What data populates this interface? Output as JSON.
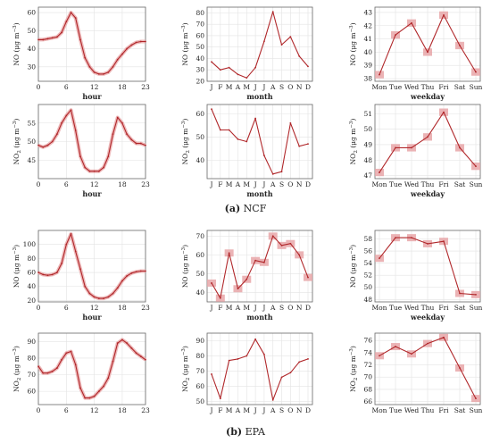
{
  "colors": {
    "line": "#b0272a",
    "band": "#e8a6a8",
    "grid": "#e3e3e3",
    "axis": "#666666"
  },
  "captions": {
    "a": {
      "letter": "(a)",
      "text": "NCF"
    },
    "b": {
      "letter": "(b)",
      "text": "EPA"
    }
  },
  "chart_data": [
    {
      "id": "ncf_no_hour",
      "type": "line",
      "x": [
        0,
        1,
        2,
        3,
        4,
        5,
        6,
        7,
        8,
        9,
        10,
        11,
        12,
        13,
        14,
        15,
        16,
        17,
        18,
        19,
        20,
        21,
        22,
        23
      ],
      "values": [
        45,
        45,
        45.5,
        46,
        46.5,
        49,
        55,
        60,
        57,
        45,
        35,
        30,
        27,
        26,
        26,
        27,
        30,
        34,
        37,
        40,
        42,
        43.5,
        44,
        44
      ],
      "band": "line",
      "xticks": [
        0,
        6,
        12,
        18,
        23
      ],
      "xticklabels": [
        "0",
        "6",
        "12",
        "18",
        "23"
      ],
      "xlim": [
        0,
        23
      ],
      "ylim": [
        22,
        63
      ],
      "yticks": [
        30,
        40,
        50,
        60
      ],
      "xlabel": "hour",
      "ylabel_main": "NO",
      "ylabel_sub": "",
      "ylabel_unit": "(μg m",
      "ylabel_sup": "−3",
      "grid": true
    },
    {
      "id": "ncf_no_month",
      "type": "line",
      "categories": [
        "J",
        "F",
        "M",
        "A",
        "M",
        "J",
        "J",
        "A",
        "S",
        "O",
        "N",
        "D"
      ],
      "values": [
        37,
        30,
        32,
        26,
        23,
        32,
        55,
        81,
        52,
        59,
        42,
        33
      ],
      "band": "none",
      "ylim": [
        20,
        85
      ],
      "yticks": [
        20,
        30,
        40,
        50,
        60,
        70,
        80
      ],
      "xlabel": "month",
      "ylabel_main": "NO",
      "ylabel_sub": "",
      "ylabel_unit": "(μg m",
      "ylabel_sup": "−3",
      "grid": true
    },
    {
      "id": "ncf_no_weekday",
      "type": "line",
      "categories": [
        "Mon",
        "Tue",
        "Wed",
        "Thu",
        "Fri",
        "Sat",
        "Sun"
      ],
      "values": [
        38.3,
        41.3,
        42.2,
        40,
        42.8,
        40.5,
        38.5
      ],
      "band": "box",
      "ylim": [
        37.8,
        43.4
      ],
      "yticks": [
        38,
        39,
        40,
        41,
        42,
        43
      ],
      "xlabel": "weekday",
      "ylabel_main": "NO",
      "ylabel_sub": "",
      "ylabel_unit": "(μg m",
      "ylabel_sup": "−3",
      "grid": true
    },
    {
      "id": "ncf_no2_hour",
      "type": "line",
      "x": [
        0,
        1,
        2,
        3,
        4,
        5,
        6,
        7,
        8,
        9,
        10,
        11,
        12,
        13,
        14,
        15,
        16,
        17,
        18,
        19,
        20,
        21,
        22,
        23
      ],
      "values": [
        49,
        48.5,
        49,
        50,
        52,
        55,
        57,
        58.5,
        53,
        46,
        43,
        42,
        42,
        42,
        43,
        46,
        52,
        56.5,
        55,
        52,
        50.5,
        49.5,
        49.5,
        49
      ],
      "band": "line",
      "xticks": [
        0,
        6,
        12,
        18,
        23
      ],
      "xticklabels": [
        "0",
        "6",
        "12",
        "18",
        "23"
      ],
      "xlim": [
        0,
        23
      ],
      "ylim": [
        40,
        60
      ],
      "yticks": [
        45,
        50,
        55
      ],
      "xlabel": "hour",
      "ylabel_main": "NO",
      "ylabel_sub": "2",
      "ylabel_unit": "(μg m",
      "ylabel_sup": "−3",
      "grid": true
    },
    {
      "id": "ncf_no2_month",
      "type": "line",
      "categories": [
        "J",
        "F",
        "M",
        "A",
        "M",
        "J",
        "J",
        "A",
        "S",
        "O",
        "N",
        "D"
      ],
      "values": [
        62,
        53,
        53,
        49,
        48,
        58,
        42,
        34,
        35,
        56,
        46,
        47
      ],
      "band": "none",
      "ylim": [
        32,
        64
      ],
      "yticks": [
        40,
        50,
        60
      ],
      "xlabel": "month",
      "ylabel_main": "NO",
      "ylabel_sub": "2",
      "ylabel_unit": "(μg m",
      "ylabel_sup": "−3",
      "grid": true
    },
    {
      "id": "ncf_no2_weekday",
      "type": "line",
      "categories": [
        "Mon",
        "Tue",
        "Wed",
        "Thu",
        "Fri",
        "Sat",
        "Sun"
      ],
      "values": [
        47.2,
        48.8,
        48.8,
        49.5,
        51.1,
        48.8,
        47.6
      ],
      "band": "box",
      "ylim": [
        46.8,
        51.6
      ],
      "yticks": [
        47,
        48,
        49,
        50,
        51
      ],
      "xlabel": "weekday",
      "ylabel_main": "NO",
      "ylabel_sub": "2",
      "ylabel_unit": "(μg m",
      "ylabel_sup": "−3",
      "grid": true
    },
    {
      "id": "epa_no_hour",
      "type": "line",
      "x": [
        0,
        1,
        2,
        3,
        4,
        5,
        6,
        7,
        8,
        9,
        10,
        11,
        12,
        13,
        14,
        15,
        16,
        17,
        18,
        19,
        20,
        21,
        22,
        23
      ],
      "values": [
        60,
        57,
        56,
        57,
        60,
        73,
        100,
        115,
        90,
        65,
        40,
        30,
        25,
        23,
        23,
        25,
        30,
        38,
        48,
        55,
        59,
        61,
        62,
        62
      ],
      "band": "line",
      "xticks": [
        0,
        6,
        12,
        18,
        23
      ],
      "xticklabels": [
        "0",
        "6",
        "12",
        "18",
        "23"
      ],
      "xlim": [
        0,
        23
      ],
      "ylim": [
        18,
        120
      ],
      "yticks": [
        20,
        40,
        60,
        80,
        100
      ],
      "xlabel": "hour",
      "ylabel_main": "NO",
      "ylabel_sub": "",
      "ylabel_unit": "(μg m",
      "ylabel_sup": "−3",
      "grid": true
    },
    {
      "id": "epa_no_month",
      "type": "line",
      "categories": [
        "J",
        "F",
        "M",
        "A",
        "M",
        "J",
        "J",
        "A",
        "S",
        "O",
        "N",
        "D"
      ],
      "values": [
        45,
        37,
        61,
        42,
        47,
        57,
        56,
        70,
        65,
        66,
        60,
        48
      ],
      "band": "box",
      "ylim": [
        35,
        73
      ],
      "yticks": [
        40,
        50,
        60,
        70
      ],
      "xlabel": "month",
      "ylabel_main": "NO",
      "ylabel_sub": "",
      "ylabel_unit": "(μg m",
      "ylabel_sup": "−3",
      "grid": true
    },
    {
      "id": "epa_no_weekday",
      "type": "line",
      "categories": [
        "Mon",
        "Tue",
        "Wed",
        "Thu",
        "Fri",
        "Sat",
        "Sun"
      ],
      "values": [
        54.8,
        58.2,
        58.2,
        57.2,
        57.6,
        49,
        48.8
      ],
      "band": "box",
      "ylim": [
        47.6,
        59.4
      ],
      "yticks": [
        48,
        50,
        52,
        54,
        56,
        58
      ],
      "xlabel": "weekday",
      "ylabel_main": "NO",
      "ylabel_sub": "",
      "ylabel_unit": "(μg m",
      "ylabel_sup": "−3",
      "grid": true
    },
    {
      "id": "epa_no2_hour",
      "type": "line",
      "x": [
        0,
        1,
        2,
        3,
        4,
        5,
        6,
        7,
        8,
        9,
        10,
        11,
        12,
        13,
        14,
        15,
        16,
        17,
        18,
        19,
        20,
        21,
        22,
        23
      ],
      "values": [
        75,
        71,
        71,
        72,
        74,
        79,
        83,
        84,
        76,
        62,
        56,
        56,
        57,
        60,
        63,
        68,
        78,
        89,
        91,
        89,
        86,
        83,
        81,
        79
      ],
      "band": "line",
      "xticks": [
        0,
        6,
        12,
        18,
        23
      ],
      "xticklabels": [
        "0",
        "6",
        "12",
        "18",
        "23"
      ],
      "xlim": [
        0,
        23
      ],
      "ylim": [
        52,
        95
      ],
      "yticks": [
        60,
        70,
        80,
        90
      ],
      "xlabel": "",
      "ylabel_main": "NO",
      "ylabel_sub": "2",
      "ylabel_unit": "(μg m",
      "ylabel_sup": "−3",
      "grid": true
    },
    {
      "id": "epa_no2_month",
      "type": "line",
      "categories": [
        "J",
        "F",
        "M",
        "A",
        "M",
        "J",
        "J",
        "A",
        "S",
        "O",
        "N",
        "D"
      ],
      "values": [
        68,
        52,
        77,
        78,
        80,
        91,
        81,
        51,
        66,
        69,
        76,
        78
      ],
      "band": "none",
      "ylim": [
        48,
        95
      ],
      "yticks": [
        50,
        60,
        70,
        80,
        90
      ],
      "xlabel": "",
      "ylabel_main": "NO",
      "ylabel_sub": "2",
      "ylabel_unit": "(μg m",
      "ylabel_sup": "−3",
      "grid": true
    },
    {
      "id": "epa_no2_weekday",
      "type": "line",
      "categories": [
        "Mon",
        "Tue",
        "Wed",
        "Thu",
        "Fri",
        "Sat",
        "Sun"
      ],
      "values": [
        73.5,
        75,
        73.8,
        75.5,
        76.5,
        71.5,
        66.5
      ],
      "band": "box",
      "ylim": [
        65.5,
        77.2
      ],
      "yticks": [
        66,
        68,
        70,
        72,
        74,
        76
      ],
      "xlabel": "",
      "ylabel_main": "NO",
      "ylabel_sub": "2",
      "ylabel_unit": "(μg m",
      "ylabel_sup": "−3",
      "grid": true
    }
  ]
}
